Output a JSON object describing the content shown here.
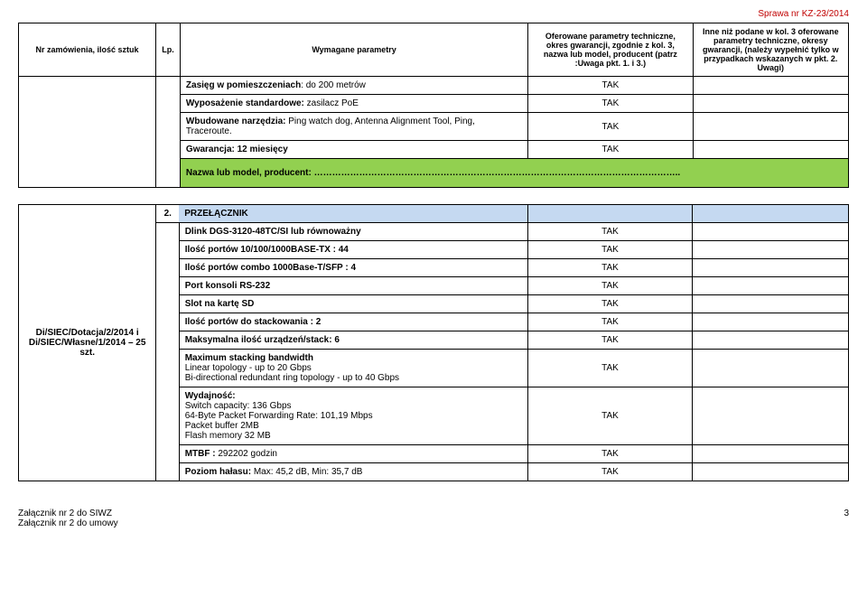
{
  "caseNr": "Sprawa nr KZ-23/2014",
  "header": {
    "col1": "Nr zamówienia, ilość sztuk",
    "col2": "Lp.",
    "col3": "Wymagane parametry",
    "col4": "Oferowane parametry techniczne, okres gwarancji, zgodnie z kol. 3, nazwa lub model, producent (patrz :Uwaga pkt. 1. i 3.)",
    "col5": "Inne niż podane w kol. 3 oferowane parametry techniczne, okresy gwarancji, (należy wypełnić tylko w przypadkach wskazanych w pkt. 2. Uwagi)"
  },
  "block1Rows": [
    {
      "param": "Zasięg w pomieszczeniach: do 200 metrów",
      "val": "TAK"
    },
    {
      "param": "Wyposażenie standardowe: zasilacz PoE",
      "val": "TAK"
    },
    {
      "param": "Wbudowane narzędzia: Ping watch dog, Antenna Alignment Tool, Ping, Traceroute.",
      "val": "TAK"
    },
    {
      "param": "Gwarancja: 12 miesięcy",
      "val": "TAK"
    }
  ],
  "modelRowLabel": "Nazwa lub model, producent: …………………………………………………………………………………………………………..",
  "section2": {
    "lp": "2.",
    "title": "PRZEŁĄCZNIK",
    "device": "Dlink DGS-3120-48TC/SI lub równoważny",
    "deviceVal": "TAK",
    "orderId": "Di/SIEC/Dotacja/2/2014 i Di/SIEC/Własne/1/2014 – 25 szt.",
    "rows": [
      {
        "param": "Ilość portów 10/100/1000BASE-TX : 44",
        "val": "TAK"
      },
      {
        "param": "Ilość portów combo 1000Base-T/SFP :  4",
        "val": "TAK"
      },
      {
        "param": "Port konsoli RS-232",
        "val": "TAK"
      },
      {
        "param": "Slot na kartę SD",
        "val": "TAK"
      },
      {
        "param": "Ilość portów do stackowania : 2",
        "val": "TAK"
      },
      {
        "param": "Maksymalna ilość urządzeń/stack: 6",
        "val": "TAK"
      },
      {
        "param": "Maximum stacking bandwidth\nLinear topology - up to 20 Gbps\nBi-directional redundant ring topology - up to 40 Gbps",
        "val": "TAK"
      },
      {
        "param": "Wydajność:\nSwitch capacity: 136 Gbps\n64-Byte Packet Forwarding Rate: 101,19 Mbps\nPacket buffer 2MB\nFlash memory 32 MB",
        "val": "TAK"
      },
      {
        "param": "MTBF : 292202 godzin",
        "val": "TAK"
      },
      {
        "param": "Poziom hałasu:  Max: 45,2 dB, Min: 35,7 dB",
        "val": "TAK"
      }
    ]
  },
  "footerLeft1": "Załącznik nr 2 do SIWZ",
  "footerLeft2": "Załącznik nr 2 do umowy",
  "footerRight": "3"
}
